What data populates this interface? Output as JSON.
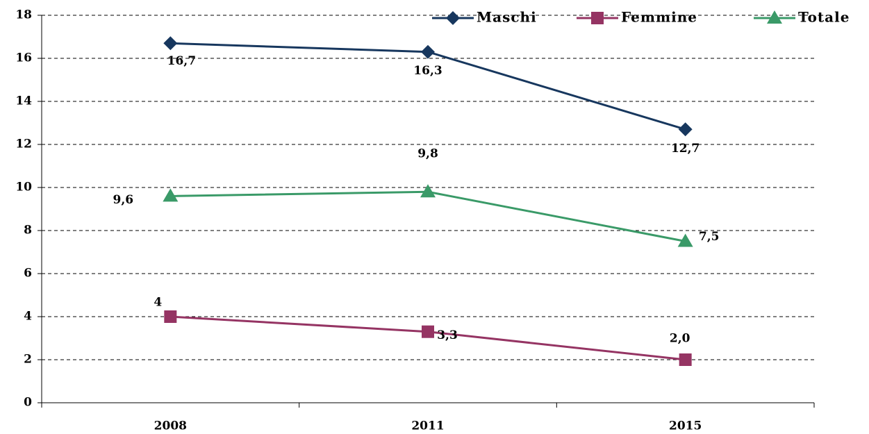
{
  "chart_data": {
    "type": "line",
    "categories": [
      "2008",
      "2011",
      "2015"
    ],
    "series": [
      {
        "name": "Maschi",
        "color": "#17375e",
        "marker": "diamond",
        "values": [
          16.7,
          16.3,
          12.7
        ],
        "value_labels": [
          "16,7",
          "16,3",
          "12,7"
        ]
      },
      {
        "name": "Femmine",
        "color": "#953463",
        "marker": "square",
        "values": [
          4,
          3.3,
          2.0
        ],
        "value_labels": [
          "4",
          "3,3",
          "2,0"
        ]
      },
      {
        "name": "Totale",
        "color": "#3a9a68",
        "marker": "triangle",
        "values": [
          9.6,
          9.8,
          7.5
        ],
        "value_labels": [
          "9,6",
          "9,8",
          "7,5"
        ]
      }
    ],
    "ylim": [
      0,
      18
    ],
    "yticks": [
      0,
      2,
      4,
      6,
      8,
      10,
      12,
      14,
      16,
      18
    ],
    "grid": true,
    "legend": "top-right"
  }
}
